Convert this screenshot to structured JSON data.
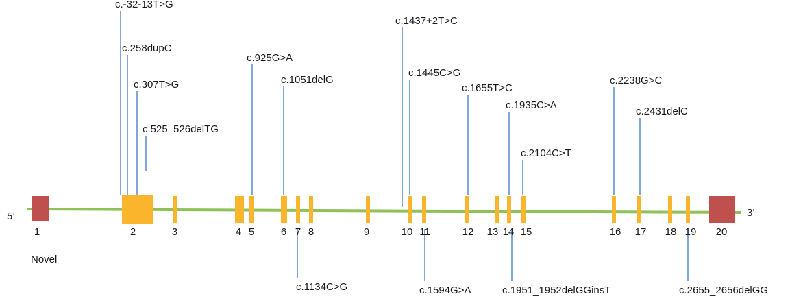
{
  "diagram": {
    "prime_5": "5’",
    "prime_3": "3’",
    "novel_label": "Novel",
    "colors": {
      "backbone": "#8fc156",
      "exon": "#fbb52c",
      "utr_exon": "#c0504d",
      "mutation_line": "#3f76c4",
      "text": "#1a1a1a"
    },
    "exons": [
      {
        "label": "1",
        "type": "utr"
      },
      {
        "label": "2",
        "type": "coding"
      },
      {
        "label": "3",
        "type": "coding"
      },
      {
        "label": "4",
        "type": "coding"
      },
      {
        "label": "5",
        "type": "coding"
      },
      {
        "label": "6",
        "type": "coding"
      },
      {
        "label": "7",
        "type": "coding"
      },
      {
        "label": "8",
        "type": "coding"
      },
      {
        "label": "9",
        "type": "coding"
      },
      {
        "label": "10",
        "type": "coding"
      },
      {
        "label": "11",
        "type": "coding"
      },
      {
        "label": "12",
        "type": "coding"
      },
      {
        "label": "13",
        "type": "coding"
      },
      {
        "label": "14",
        "type": "coding"
      },
      {
        "label": "15",
        "type": "coding"
      },
      {
        "label": "16",
        "type": "coding"
      },
      {
        "label": "17",
        "type": "coding"
      },
      {
        "label": "18",
        "type": "coding"
      },
      {
        "label": "19",
        "type": "coding"
      },
      {
        "label": "20",
        "type": "utr"
      }
    ],
    "mutations_above": [
      {
        "name": "c.-32-13T>G"
      },
      {
        "name": "c.258dupC"
      },
      {
        "name": "c.307T>G"
      },
      {
        "name": "c.525_526delTG"
      },
      {
        "name": "c.925G>A"
      },
      {
        "name": "c.1051delG"
      },
      {
        "name": "c.1437+2T>C"
      },
      {
        "name": "c.1445C>G"
      },
      {
        "name": "c.1655T>C"
      },
      {
        "name": "c.1935C>A"
      },
      {
        "name": "c.2104C>T"
      },
      {
        "name": "c.2238G>C"
      },
      {
        "name": "c.2431delC"
      }
    ],
    "mutations_below": [
      {
        "name": "c.1134C>G"
      },
      {
        "name": "c.1594G>A"
      },
      {
        "name": "c.1951_1952delGGinsT"
      },
      {
        "name": "c.2655_2656delGG"
      }
    ]
  }
}
